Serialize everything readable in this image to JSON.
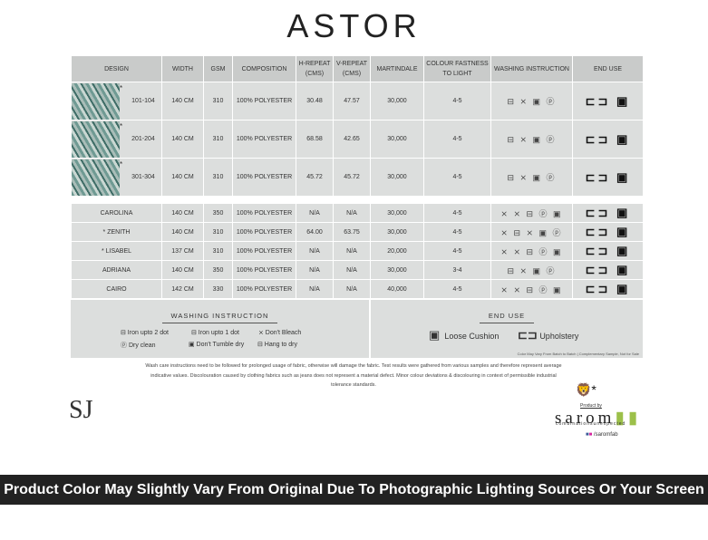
{
  "title": "ASTOR",
  "headers": [
    "DESIGN",
    "WIDTH",
    "GSM",
    "COMPOSITION",
    "H-REPEAT (CMS)",
    "V-REPEAT (CMS)",
    "MARTINDALE",
    "COLOUR FASTNESS TO LIGHT",
    "WASHING INSTRUCTION",
    "END USE"
  ],
  "rows1": [
    {
      "star": "*",
      "design": "101-104",
      "width": "140 CM",
      "gsm": "310",
      "comp": "100% POLYESTER",
      "h": "30.48",
      "v": "47.57",
      "mart": "30,000",
      "fast": "4-5",
      "wash": "⊟ ⨯ ▣ ⓟ",
      "end": "⊏⊐ ▣"
    },
    {
      "star": "*",
      "design": "201-204",
      "width": "140 CM",
      "gsm": "310",
      "comp": "100% POLYESTER",
      "h": "68.58",
      "v": "42.65",
      "mart": "30,000",
      "fast": "4-5",
      "wash": "⊟ ⨯ ▣ ⓟ",
      "end": "⊏⊐ ▣"
    },
    {
      "star": "*",
      "design": "301-304",
      "width": "140 CM",
      "gsm": "310",
      "comp": "100% POLYESTER",
      "h": "45.72",
      "v": "45.72",
      "mart": "30,000",
      "fast": "4-5",
      "wash": "⊟ ⨯ ▣ ⓟ",
      "end": "⊏⊐ ▣"
    }
  ],
  "rows2": [
    {
      "star": "",
      "design": "CAROLINA",
      "width": "140 CM",
      "gsm": "350",
      "comp": "100% POLYESTER",
      "h": "N/A",
      "v": "N/A",
      "mart": "30,000",
      "fast": "4-5",
      "wash": "⨯ ⨯ ⊟ ⓟ ▣",
      "end": "⊏⊐ ▣"
    },
    {
      "star": "*",
      "design": "ZENITH",
      "width": "140 CM",
      "gsm": "310",
      "comp": "100% POLYESTER",
      "h": "64.00",
      "v": "63.75",
      "mart": "30,000",
      "fast": "4-5",
      "wash": "⨯ ⊟ ⨯ ▣ ⓟ",
      "end": "⊏⊐ ▣"
    },
    {
      "star": "*",
      "design": "LISABEL",
      "width": "137 CM",
      "gsm": "310",
      "comp": "100% POLYESTER",
      "h": "N/A",
      "v": "N/A",
      "mart": "20,000",
      "fast": "4-5",
      "wash": "⨯ ⨯ ⊟ ⓟ ▣",
      "end": "⊏⊐ ▣"
    },
    {
      "star": "",
      "design": "ADRIANA",
      "width": "140 CM",
      "gsm": "350",
      "comp": "100% POLYESTER",
      "h": "N/A",
      "v": "N/A",
      "mart": "30,000",
      "fast": "3-4",
      "wash": "⊟ ⨯ ▣ ⓟ",
      "end": "⊏⊐ ▣"
    },
    {
      "star": "",
      "design": "CAIRO",
      "width": "142 CM",
      "gsm": "330",
      "comp": "100% POLYESTER",
      "h": "N/A",
      "v": "N/A",
      "mart": "40,000",
      "fast": "4-5",
      "wash": "⨯ ⨯ ⊟ ⓟ ▣",
      "end": "⊏⊐ ▣"
    }
  ],
  "legend": {
    "wash_title": "WASHING INSTRUCTION",
    "items": [
      "⊟ Iron upto 2 dot",
      "⊟ Iron upto 1 dot",
      "⨯ Don't Bleach",
      "ⓟ Dry clean",
      "▣ Don't Tumble dry",
      "⊟ Hang to dry"
    ],
    "end_title": "END USE",
    "loose": "Loose Cushion",
    "uph": "Upholstery",
    "note": "Color May Vary From Batch to Batch | Complementary Sample, Not for Sale"
  },
  "disclaimer": "Wash care instructions need to be followed for prolonged usage of fabric, otherwise will damage the fabric. Test results were gathered from various samples and therefore represent average indicative values. Discolouration caused by clothing fabrics such as jeans does not represent a material defect. Minor colour deviations & discolouring in context of  permissible industrial tolerance standards.",
  "brand": {
    "sj": "SJ",
    "product_by": "Product by",
    "name": "sarom",
    "tagline": "combinationsunexpected",
    "social": "/saromfab"
  },
  "banner": "Product Color May Slightly Vary From Original Due To Photographic Lighting Sources Or Your Screen Settings."
}
